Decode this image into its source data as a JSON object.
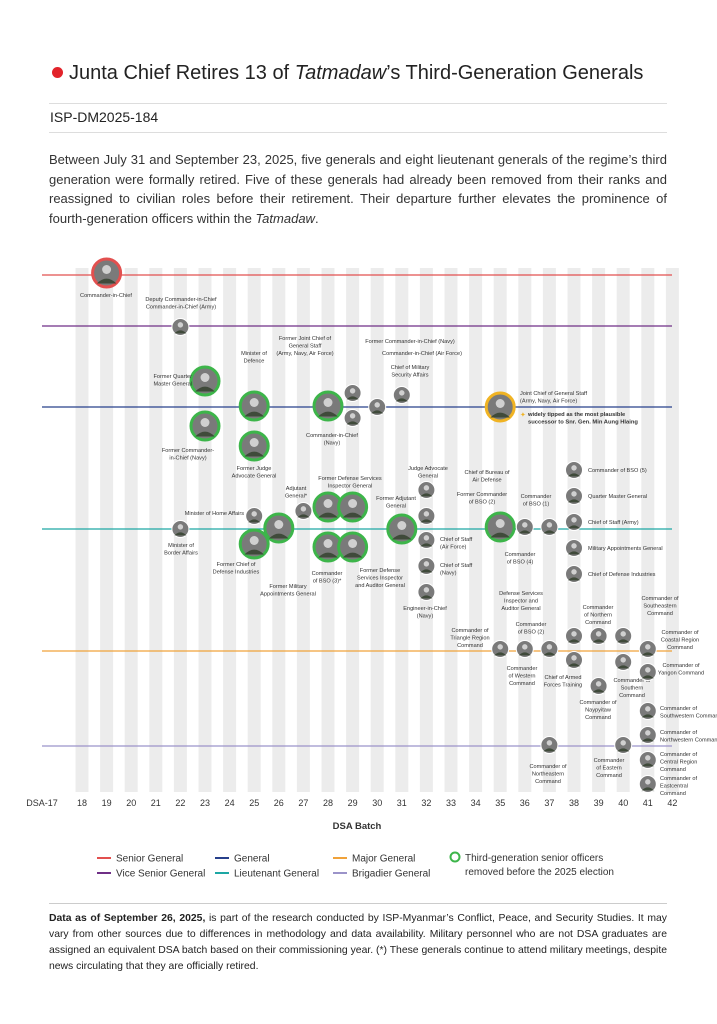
{
  "header": {
    "title_parts": [
      "Junta Chief Retires 13 of ",
      "Tatmadaw",
      "’s Third-Generation Generals"
    ],
    "report_id": "ISP-DM2025-184"
  },
  "intro_parts": [
    "Between July 31 and September 23, 2025, five generals and eight lieutenant generals of the regime’s third generation were formally retired. Five of these generals had already been removed from their ranks and reassigned to civilian roles before their retirement. Their departure further elevates the prominence of fourth-generation officers within the ",
    "Tatmadaw",
    "."
  ],
  "chart_data": {
    "type": "scatter",
    "x_label": "DSA Batch",
    "categories": [
      "DSA-17",
      "18",
      "19",
      "20",
      "21",
      "22",
      "23",
      "24",
      "25",
      "26",
      "27",
      "28",
      "29",
      "30",
      "31",
      "32",
      "33",
      "34",
      "35",
      "36",
      "37",
      "38",
      "39",
      "40",
      "41",
      "42"
    ],
    "ranks": [
      {
        "name": "Senior General",
        "color": "#e2504f"
      },
      {
        "name": "Vice Senior General",
        "color": "#6f2f86"
      },
      {
        "name": "General",
        "color": "#27408b"
      },
      {
        "name": "Lieutenant General",
        "color": "#1da7a4"
      },
      {
        "name": "Major General",
        "color": "#f0a23a"
      },
      {
        "name": "Brigadier General",
        "color": "#9b93c9"
      }
    ],
    "third_gen_legend": [
      "Third-generation senior officers",
      "removed before the 2025 election"
    ],
    "third_gen_color": "#3db54a",
    "successor_color": "#f0b323",
    "officers": [
      {
        "label": [
          "Commander-in-Chief"
        ],
        "batch": "19",
        "rank": "Senior General",
        "third_gen": false
      },
      {
        "label": [
          "Deputy Commander-in-Chief",
          "Commander-in-Chief  (Army)"
        ],
        "batch": "22",
        "rank": "Vice Senior General",
        "third_gen": false
      },
      {
        "label": [
          "Former Quarter",
          "Master General"
        ],
        "batch": "23",
        "rank": "General",
        "third_gen": true
      },
      {
        "label": [
          "Former Commander-",
          "in-Chief (Navy)"
        ],
        "batch": "23",
        "rank": "General",
        "third_gen": true
      },
      {
        "label": [
          "Minister of",
          "Defence"
        ],
        "batch": "25",
        "rank": "General",
        "third_gen": true
      },
      {
        "label": [
          "Former Judge",
          "Advocate General"
        ],
        "batch": "25",
        "rank": "General",
        "third_gen": true
      },
      {
        "label": [
          "Former Joint Chief of",
          "General Staff",
          "(Army, Navy, Air Force)"
        ],
        "batch": "29",
        "rank": "General",
        "third_gen": false
      },
      {
        "label": [
          "Commander-in-Chief",
          "(Navy)"
        ],
        "batch": "28",
        "rank": "General",
        "third_gen": true
      },
      {
        "label": [
          "Former Commander-in-Chief (Navy)"
        ],
        "batch": "29",
        "rank": "General",
        "third_gen": false
      },
      {
        "label": [
          "Commander-in-Chief (Air Force)"
        ],
        "batch": "30",
        "rank": "General",
        "third_gen": false
      },
      {
        "label": [
          "Chief of Military",
          "Security Affairs"
        ],
        "batch": "31",
        "rank": "General",
        "third_gen": false
      },
      {
        "label": [
          "Joint Chief of General Staff",
          "(Army, Navy, Air Force)"
        ],
        "batch": "35",
        "rank": "General",
        "third_gen": false,
        "note": [
          "widely tipped as the most plausible",
          "successor to Snr. Gen. Min Aung Hlaing"
        ]
      },
      {
        "label": [
          "Minister of",
          "Border Affairs"
        ],
        "batch": "22",
        "rank": "Lieutenant General",
        "third_gen": false
      },
      {
        "label": [
          "Minister of Home Affairs"
        ],
        "batch": "25",
        "rank": "Lieutenant General",
        "third_gen": false
      },
      {
        "label": [
          "Former Chief of",
          "Defense Industries"
        ],
        "batch": "25",
        "rank": "Lieutenant General",
        "third_gen": true
      },
      {
        "label": [
          "Former Military",
          "Appointments General"
        ],
        "batch": "26",
        "rank": "Lieutenant General",
        "third_gen": true
      },
      {
        "label": [
          "Adjutant",
          "General*"
        ],
        "batch": "27",
        "rank": "Lieutenant General",
        "third_gen": false
      },
      {
        "label": [],
        "batch": "28",
        "rank": "Lieutenant General",
        "third_gen": true
      },
      {
        "label": [
          "Former Defense Services",
          "Inspector General"
        ],
        "batch": "29",
        "rank": "Lieutenant General",
        "third_gen": true
      },
      {
        "label": [
          "Commander",
          "of BSO (3)*"
        ],
        "batch": "28",
        "rank": "Lieutenant General",
        "third_gen": true
      },
      {
        "label": [
          "Former Defense",
          "Services Inspector",
          "and Auditor General"
        ],
        "batch": "29",
        "rank": "Lieutenant General",
        "third_gen": true
      },
      {
        "label": [
          "Former Adjutant",
          "General"
        ],
        "batch": "31",
        "rank": "Lieutenant General",
        "third_gen": true
      },
      {
        "label": [
          "Judge Advocate",
          "General"
        ],
        "batch": "32",
        "rank": "Lieutenant General",
        "third_gen": false
      },
      {
        "label": [
          "Chief of Staff",
          "(Air Force)"
        ],
        "batch": "32",
        "rank": "Lieutenant General",
        "third_gen": false
      },
      {
        "label": [
          "Chief of Staff",
          "(Navy)"
        ],
        "batch": "32",
        "rank": "Lieutenant General",
        "third_gen": false
      },
      {
        "label": [
          "Engineer-in-Chief",
          "(Navy)"
        ],
        "batch": "32",
        "rank": "Lieutenant General",
        "third_gen": false
      },
      {
        "label": [
          "Chief of Bureau of",
          "Air Defense"
        ],
        "batch": "32",
        "rank": "Lieutenant General",
        "third_gen": false
      },
      {
        "label": [
          "Former Commander",
          "of BSO (2)"
        ],
        "batch": "35",
        "rank": "Lieutenant General",
        "third_gen": true
      },
      {
        "label": [
          "Commander",
          "of BSO (4)"
        ],
        "batch": "36",
        "rank": "Lieutenant General",
        "third_gen": false
      },
      {
        "label": [
          "Commander",
          "of BSO (1)"
        ],
        "batch": "37",
        "rank": "Lieutenant General",
        "third_gen": false
      },
      {
        "label": [
          "Commander of BSO (5)"
        ],
        "batch": "38",
        "rank": "Lieutenant General",
        "third_gen": false
      },
      {
        "label": [
          "Quarter Master General"
        ],
        "batch": "38",
        "rank": "Lieutenant General",
        "third_gen": false
      },
      {
        "label": [
          "Chief of Staff (Army)"
        ],
        "batch": "38",
        "rank": "Lieutenant General",
        "third_gen": false
      },
      {
        "label": [
          "Military Appointments General"
        ],
        "batch": "38",
        "rank": "Lieutenant General",
        "third_gen": false
      },
      {
        "label": [
          "Chief of Defense Industries"
        ],
        "batch": "38",
        "rank": "Lieutenant General",
        "third_gen": false
      },
      {
        "label": [
          "Commander of",
          "Triangle Region",
          "Command"
        ],
        "batch": "35",
        "rank": "Major General",
        "third_gen": false
      },
      {
        "label": [
          "Commander",
          "of Western",
          "Command"
        ],
        "batch": "36",
        "rank": "Major General",
        "third_gen": false
      },
      {
        "label": [
          "Commander",
          "of BSO (2)"
        ],
        "batch": "37",
        "rank": "Major General",
        "third_gen": false
      },
      {
        "label": [
          "Defense Services",
          "Inspector and",
          "Auditor General"
        ],
        "batch": "38",
        "rank": "Major General",
        "third_gen": false
      },
      {
        "label": [
          "Chief of Armed",
          "Forces Training"
        ],
        "batch": "38",
        "rank": "Major General",
        "third_gen": false
      },
      {
        "label": [
          "Commander",
          "of Northern",
          "Command"
        ],
        "batch": "39",
        "rank": "Major General",
        "third_gen": false
      },
      {
        "label": [
          "Commander of",
          "Naypyitaw",
          "Command"
        ],
        "batch": "39",
        "rank": "Major General",
        "third_gen": false
      },
      {
        "label": [
          "Commander of",
          "Southern",
          "Command"
        ],
        "batch": "40",
        "rank": "Major General",
        "third_gen": false
      },
      {
        "label": [
          "Commander of",
          "Southeastern",
          "Command"
        ],
        "batch": "40",
        "rank": "Major General",
        "third_gen": false
      },
      {
        "label": [
          "Commander of",
          "Coastal Region",
          "Command"
        ],
        "batch": "41",
        "rank": "Major General",
        "third_gen": false
      },
      {
        "label": [
          "Commander of",
          "Yangon Command"
        ],
        "batch": "41",
        "rank": "Major General",
        "third_gen": false
      },
      {
        "label": [
          "Commander of",
          "Northeastern",
          "Command"
        ],
        "batch": "37",
        "rank": "Brigadier General",
        "third_gen": false
      },
      {
        "label": [
          "Commander",
          "of Eastern",
          "Command"
        ],
        "batch": "40",
        "rank": "Brigadier General",
        "third_gen": false
      },
      {
        "label": [
          "Commander of",
          "Southwestern Command"
        ],
        "batch": "41",
        "rank": "Brigadier General",
        "third_gen": false
      },
      {
        "label": [
          "Commander of",
          "Northwestern Command"
        ],
        "batch": "41",
        "rank": "Brigadier General",
        "third_gen": false
      },
      {
        "label": [
          "Commander of",
          "Central Region",
          "Command"
        ],
        "batch": "41",
        "rank": "Brigadier General",
        "third_gen": false
      },
      {
        "label": [
          "Commander of",
          "Eastcentral",
          "Command"
        ],
        "batch": "41",
        "rank": "Brigadier General",
        "third_gen": false
      }
    ]
  },
  "footer": {
    "bold": "Data as of September 26, 2025,",
    "text": " is part of the research conducted by ISP-Myanmar’s Conflict, Peace, and Security Studies. It may vary from other sources due to differences in methodology and data availability. Military personnel who are not DSA graduates are assigned an equivalent DSA batch based on their commissioning year. (*) These generals continue to attend military meetings, despite news circulating that they are officially retired."
  }
}
